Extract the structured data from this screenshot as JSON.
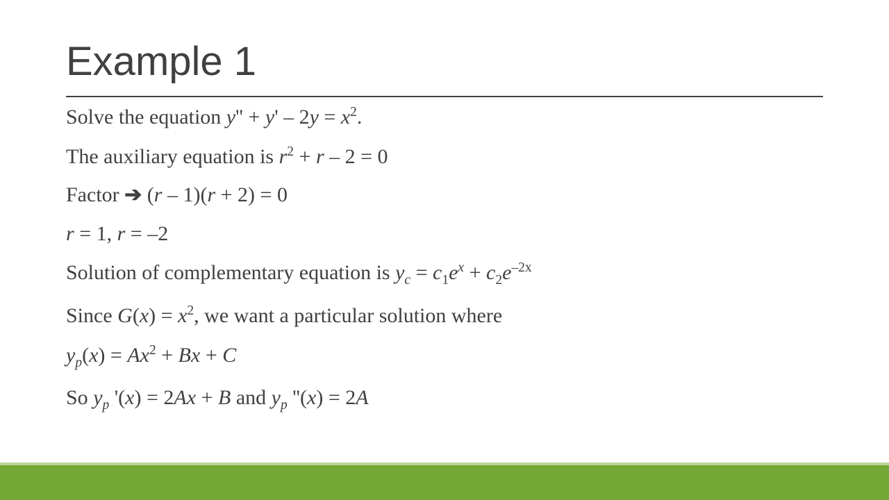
{
  "slide": {
    "title": "Example 1",
    "lines": {
      "l1a": "Solve the equation ",
      "l1b": ".",
      "l2a": "The auxiliary equation is ",
      "l3a": "Factor ",
      "l3arrow": "➔",
      "l4": " = 1, ",
      "l4b": " = –2",
      "l5a": "Solution of complementary equation is ",
      "l6a": "Since ",
      "l6b": ", we want a particular solution where",
      "l8a": "So ",
      "l8b": " and "
    }
  },
  "math": {
    "eq1_y2": "y",
    "eq1_pp": "''",
    "eq1_plus": " + ",
    "eq1_y1": "y",
    "eq1_p": "'",
    "eq1_rest": " – 2",
    "eq1_y": "y",
    "eq1_eq": " = ",
    "eq1_x": "x",
    "eq1_sq": "2",
    "aux_r": "r",
    "aux_sq": "2",
    "aux_mid": " + ",
    "aux_r2": "r",
    "aux_end": " – 2 = 0",
    "factor_open": " (",
    "factor_r1": "r",
    "factor_m1": " – 1)(",
    "factor_r2": "r",
    "factor_end": " + 2) = 0",
    "r": "r",
    "yc_y": "y",
    "yc_c": "c",
    "yc_eq": " = ",
    "yc_c1": "c",
    "yc_1": "1",
    "yc_e1": "e",
    "yc_x": "x",
    "yc_pl": " + ",
    "yc_c2": "c",
    "yc_2": "2",
    "yc_e2": "e",
    "yc_exp2": "–2x",
    "G": "G",
    "Gx_open": "(",
    "Gx_x": "x",
    "Gx_close": ") = ",
    "Gx_x2": "x",
    "Gx_sq": "2",
    "yp_y": "y",
    "yp_p": "p",
    "yp_open": "(",
    "yp_x": "x",
    "yp_close": ") = ",
    "yp_A": "A",
    "yp_x2": "x",
    "yp_sq": "2",
    "yp_pl": " + ",
    "yp_B": "B",
    "yp_x3": "x",
    "yp_pl2": " + ",
    "yp_C": "C",
    "d1_prime": "'",
    "d1_eq": ") = 2",
    "d1_A": "A",
    "d1_x": "x",
    "d1_pl": " + ",
    "d1_B": "B",
    "d2_pp": "''",
    "d2_eq": ") = 2",
    "d2_A": "A"
  },
  "style": {
    "accent_bar": "#74a736",
    "accent_top": "#bcd49a",
    "title_color": "#404040",
    "body_color": "#404040",
    "title_fontsize": 58,
    "body_fontsize": 30
  }
}
